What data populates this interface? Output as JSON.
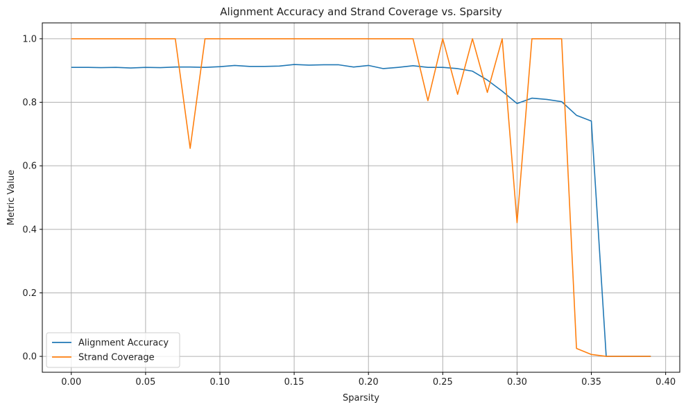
{
  "chart_data": {
    "type": "line",
    "title": "Alignment Accuracy and Strand Coverage vs. Sparsity",
    "xlabel": "Sparsity",
    "ylabel": "Metric Value",
    "xlim": [
      -0.0195,
      0.4095
    ],
    "ylim": [
      -0.05,
      1.05
    ],
    "xticks": [
      0.0,
      0.05,
      0.1,
      0.15,
      0.2,
      0.25,
      0.3,
      0.35,
      0.4
    ],
    "xtick_labels": [
      "0.00",
      "0.05",
      "0.10",
      "0.15",
      "0.20",
      "0.25",
      "0.30",
      "0.35",
      "0.40"
    ],
    "yticks": [
      0.0,
      0.2,
      0.4,
      0.6,
      0.8,
      1.0
    ],
    "ytick_labels": [
      "0.0",
      "0.2",
      "0.4",
      "0.6",
      "0.8",
      "1.0"
    ],
    "grid": true,
    "legend_position": "lower-left",
    "series": [
      {
        "name": "Alignment Accuracy",
        "color": "#1f77b4",
        "x": [
          0.0,
          0.01,
          0.02,
          0.03,
          0.04,
          0.05,
          0.06,
          0.07,
          0.08,
          0.09,
          0.1,
          0.11,
          0.12,
          0.13,
          0.14,
          0.15,
          0.16,
          0.17,
          0.18,
          0.19,
          0.2,
          0.21,
          0.22,
          0.23,
          0.24,
          0.25,
          0.26,
          0.27,
          0.28,
          0.29,
          0.3,
          0.31,
          0.32,
          0.33,
          0.34,
          0.35,
          0.36,
          0.37,
          0.38,
          0.39
        ],
        "y": [
          0.91,
          0.91,
          0.909,
          0.91,
          0.908,
          0.91,
          0.909,
          0.911,
          0.911,
          0.91,
          0.912,
          0.916,
          0.913,
          0.913,
          0.914,
          0.919,
          0.917,
          0.918,
          0.918,
          0.911,
          0.916,
          0.906,
          0.91,
          0.915,
          0.91,
          0.91,
          0.906,
          0.898,
          0.87,
          0.835,
          0.796,
          0.813,
          0.809,
          0.802,
          0.759,
          0.741,
          0.0,
          0.0,
          0.0,
          0.0
        ]
      },
      {
        "name": "Strand Coverage",
        "color": "#ff7f0e",
        "x": [
          0.0,
          0.01,
          0.02,
          0.03,
          0.04,
          0.05,
          0.06,
          0.07,
          0.08,
          0.09,
          0.1,
          0.11,
          0.12,
          0.13,
          0.14,
          0.15,
          0.16,
          0.17,
          0.18,
          0.19,
          0.2,
          0.21,
          0.22,
          0.23,
          0.24,
          0.25,
          0.26,
          0.27,
          0.28,
          0.29,
          0.3,
          0.31,
          0.32,
          0.33,
          0.34,
          0.35,
          0.36,
          0.37,
          0.38,
          0.39
        ],
        "y": [
          1.0,
          1.0,
          1.0,
          1.0,
          1.0,
          1.0,
          1.0,
          1.0,
          0.655,
          1.0,
          1.0,
          1.0,
          1.0,
          1.0,
          1.0,
          1.0,
          1.0,
          1.0,
          1.0,
          1.0,
          1.0,
          1.0,
          1.0,
          1.0,
          0.805,
          1.0,
          0.825,
          1.0,
          0.831,
          1.0,
          0.421,
          1.0,
          1.0,
          1.0,
          0.025,
          0.006,
          0.0,
          0.0,
          0.0,
          0.0
        ]
      }
    ]
  }
}
